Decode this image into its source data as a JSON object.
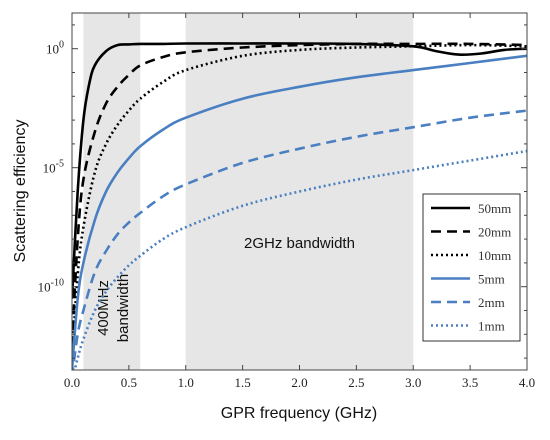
{
  "chart_data": {
    "type": "line",
    "xlabel": "GPR frequency (GHz)",
    "ylabel": "Scattering efficiency",
    "xlim": [
      0,
      4
    ],
    "ylim_log10": [
      -13.5,
      1.5
    ],
    "y_scale": "log",
    "x_ticks": [
      "0.0",
      "0.5",
      "1.0",
      "1.5",
      "2.0",
      "2.5",
      "3.0",
      "3.5",
      "4.0"
    ],
    "y_ticks": [
      {
        "base": "10",
        "exp": "0"
      },
      {
        "base": "10",
        "exp": "-5"
      },
      {
        "base": "10",
        "exp": "-10"
      }
    ],
    "bands": [
      {
        "from": 0.1,
        "to": 0.6,
        "label": [
          "400MHz",
          "bandwidth"
        ]
      },
      {
        "from": 1.0,
        "to": 3.0,
        "label": [
          "2GHz bandwidth"
        ]
      }
    ],
    "legend_position": "bottom-right",
    "series": [
      {
        "name": "50mm",
        "color": "#000000",
        "dash": "solid",
        "x": [
          0.0,
          0.05,
          0.1,
          0.15,
          0.2,
          0.3,
          0.4,
          0.5,
          0.6,
          0.8,
          1.0,
          1.5,
          2.0,
          2.5,
          3.0,
          3.2,
          3.4,
          3.6,
          3.8,
          4.0
        ],
        "log10_y": [
          -10.5,
          -6.0,
          -3.0,
          -1.5,
          -0.7,
          -0.1,
          0.15,
          0.18,
          0.2,
          0.2,
          0.22,
          0.22,
          0.22,
          0.2,
          0.1,
          -0.1,
          -0.25,
          -0.2,
          -0.05,
          0.0
        ]
      },
      {
        "name": "20mm",
        "color": "#000000",
        "dash": "dashed",
        "x": [
          0.0,
          0.05,
          0.1,
          0.2,
          0.3,
          0.4,
          0.5,
          0.6,
          0.8,
          1.0,
          1.5,
          2.0,
          2.5,
          3.0,
          3.5,
          4.0
        ],
        "log10_y": [
          -12.5,
          -8.0,
          -5.5,
          -3.5,
          -2.3,
          -1.6,
          -1.1,
          -0.7,
          -0.35,
          -0.15,
          0.05,
          0.15,
          0.2,
          0.2,
          0.2,
          0.15
        ]
      },
      {
        "name": "10mm",
        "color": "#000000",
        "dash": "dotted",
        "x": [
          0.0,
          0.05,
          0.1,
          0.2,
          0.3,
          0.4,
          0.5,
          0.6,
          0.8,
          1.0,
          1.5,
          2.0,
          2.5,
          3.0,
          3.5,
          4.0
        ],
        "log10_y": [
          -13.0,
          -9.5,
          -7.5,
          -5.2,
          -4.0,
          -3.2,
          -2.6,
          -2.1,
          -1.4,
          -0.9,
          -0.3,
          -0.05,
          0.05,
          0.1,
          0.15,
          0.1
        ]
      },
      {
        "name": "5mm",
        "color": "#4a7fc1",
        "dash": "solid",
        "x": [
          0.0,
          0.05,
          0.1,
          0.2,
          0.3,
          0.4,
          0.5,
          0.6,
          0.8,
          1.0,
          1.5,
          2.0,
          2.5,
          3.0,
          3.5,
          4.0
        ],
        "log10_y": [
          -13.5,
          -10.5,
          -9.0,
          -7.2,
          -6.0,
          -5.2,
          -4.6,
          -4.1,
          -3.4,
          -2.9,
          -2.1,
          -1.6,
          -1.2,
          -0.9,
          -0.6,
          -0.3
        ]
      },
      {
        "name": "2mm",
        "color": "#4a7fc1",
        "dash": "dashed",
        "x": [
          0.0,
          0.05,
          0.1,
          0.2,
          0.3,
          0.4,
          0.5,
          0.6,
          0.8,
          1.0,
          1.5,
          2.0,
          2.5,
          3.0,
          3.5,
          4.0
        ],
        "log10_y": [
          -13.8,
          -12.0,
          -11.0,
          -9.4,
          -8.5,
          -7.8,
          -7.3,
          -6.9,
          -6.2,
          -5.7,
          -4.8,
          -4.2,
          -3.7,
          -3.3,
          -2.9,
          -2.6
        ]
      },
      {
        "name": "1mm",
        "color": "#4a7fc1",
        "dash": "dotted",
        "x": [
          0.0,
          0.05,
          0.1,
          0.2,
          0.3,
          0.4,
          0.5,
          0.6,
          0.8,
          1.0,
          1.5,
          2.0,
          2.5,
          3.0,
          3.5,
          4.0
        ],
        "log10_y": [
          -14.0,
          -13.0,
          -12.2,
          -11.0,
          -10.2,
          -9.6,
          -9.1,
          -8.7,
          -8.0,
          -7.5,
          -6.6,
          -6.0,
          -5.5,
          -5.1,
          -4.7,
          -4.3
        ]
      }
    ]
  }
}
